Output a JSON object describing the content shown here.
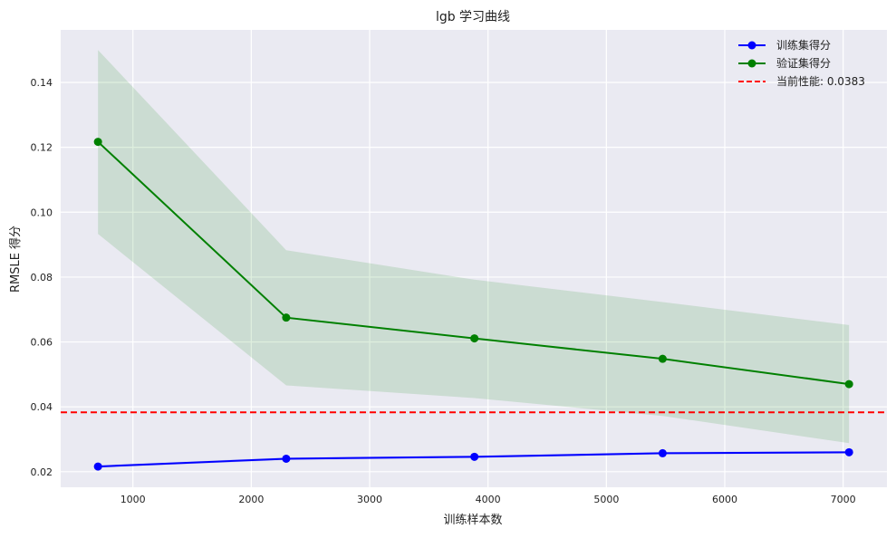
{
  "chart_data": {
    "type": "line",
    "title": "lgb 学习曲线",
    "xlabel": "训练样本数",
    "ylabel": "RMSLE 得分",
    "xlim": [
      390,
      7370
    ],
    "ylim": [
      0.0152,
      0.1562
    ],
    "x_ticks": [
      1000,
      2000,
      3000,
      4000,
      5000,
      6000,
      7000
    ],
    "x_tick_labels": [
      "1000",
      "2000",
      "3000",
      "4000",
      "5000",
      "6000",
      "7000"
    ],
    "y_ticks": [
      0.02,
      0.04,
      0.06,
      0.08,
      0.1,
      0.12,
      0.14
    ],
    "y_tick_labels": [
      "0.02",
      "0.04",
      "0.06",
      "0.08",
      "0.10",
      "0.12",
      "0.14"
    ],
    "grid": true,
    "legend_position": "top-right",
    "x": [
      705,
      2295,
      3885,
      5475,
      7050
    ],
    "series": [
      {
        "name": "训练集得分",
        "color": "#0000ff",
        "marker": "circle",
        "values": [
          0.0216,
          0.024,
          0.0246,
          0.0257,
          0.026
        ],
        "band_lower": [
          0.0212,
          0.0236,
          0.0242,
          0.0253,
          0.0256
        ],
        "band_upper": [
          0.022,
          0.0244,
          0.025,
          0.0261,
          0.0264
        ],
        "band_color": "#0000ff"
      },
      {
        "name": "验证集得分",
        "color": "#008000",
        "marker": "circle",
        "values": [
          0.1217,
          0.0675,
          0.0611,
          0.0548,
          0.047
        ],
        "band_lower": [
          0.0933,
          0.0466,
          0.0427,
          0.0372,
          0.0288
        ],
        "band_upper": [
          0.15,
          0.0883,
          0.0792,
          0.0723,
          0.0652
        ],
        "band_color": "#008000"
      }
    ],
    "reference_line": {
      "label": "当前性能: 0.0383",
      "value": 0.0383,
      "color": "#ff0000",
      "style": "dashed"
    },
    "background_color": "#eaeaf2",
    "grid_color": "#ffffff"
  }
}
